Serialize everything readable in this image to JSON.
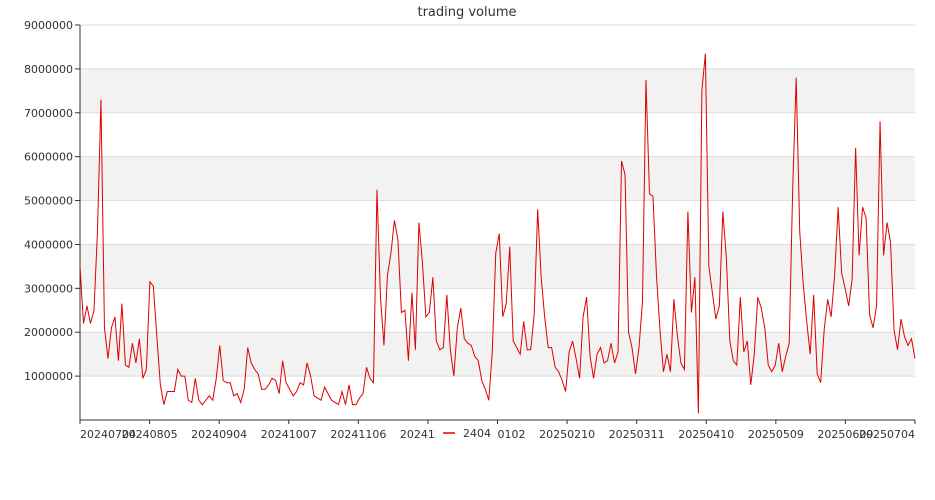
{
  "chart_data": {
    "type": "line",
    "title": "trading volume",
    "xlabel": "",
    "ylabel": "",
    "ylim": [
      0,
      9000000
    ],
    "yticks": [
      1000000,
      2000000,
      3000000,
      4000000,
      5000000,
      6000000,
      7000000,
      8000000,
      9000000
    ],
    "xtick_labels": [
      "20240704",
      "20240805",
      "20240904",
      "20241007",
      "20241106",
      "20241206",
      "20250102",
      "20250210",
      "20250311",
      "20250410",
      "20250509",
      "20250609",
      "20250704"
    ],
    "grid": true,
    "legend_position": "bottom-center",
    "colors": {
      "line": "#e00000",
      "band": "#f2f2f2",
      "grid": "#dddddd",
      "axis": "#333333"
    },
    "series": [
      {
        "name": "2404",
        "values": [
          3500000,
          2200000,
          2600000,
          2200000,
          2500000,
          4300000,
          7300000,
          2100000,
          1400000,
          2100000,
          2350000,
          1350000,
          2650000,
          1250000,
          1200000,
          1750000,
          1300000,
          1850000,
          950000,
          1150000,
          3150000,
          3050000,
          1900000,
          800000,
          350000,
          650000,
          650000,
          650000,
          1150000,
          1000000,
          1000000,
          450000,
          400000,
          950000,
          450000,
          350000,
          450000,
          550000,
          450000,
          950000,
          1700000,
          900000,
          850000,
          850000,
          550000,
          600000,
          400000,
          700000,
          1650000,
          1300000,
          1150000,
          1050000,
          700000,
          700000,
          800000,
          950000,
          900000,
          600000,
          1350000,
          850000,
          700000,
          550000,
          650000,
          850000,
          800000,
          1300000,
          1000000,
          550000,
          500000,
          450000,
          750000,
          600000,
          450000,
          400000,
          350000,
          650000,
          350000,
          800000,
          350000,
          350000,
          500000,
          600000,
          1200000,
          950000,
          850000,
          5250000,
          2800000,
          1700000,
          3300000,
          3800000,
          4550000,
          4100000,
          2450000,
          2500000,
          1350000,
          2900000,
          1600000,
          4500000,
          3600000,
          2350000,
          2450000,
          3250000,
          1800000,
          1600000,
          1650000,
          2850000,
          1600000,
          1000000,
          2100000,
          2550000,
          1850000,
          1750000,
          1700000,
          1450000,
          1350000,
          900000,
          700000,
          450000,
          1550000,
          3800000,
          4250000,
          2350000,
          2650000,
          3950000,
          1800000,
          1650000,
          1500000,
          2250000,
          1600000,
          1600000,
          2400000,
          4800000,
          3250000,
          2350000,
          1650000,
          1650000,
          1200000,
          1100000,
          900000,
          650000,
          1550000,
          1800000,
          1400000,
          950000,
          2350000,
          2800000,
          1450000,
          950000,
          1500000,
          1650000,
          1300000,
          1350000,
          1750000,
          1300000,
          1550000,
          5900000,
          5600000,
          2000000,
          1650000,
          1050000,
          1650000,
          2700000,
          7750000,
          5150000,
          5100000,
          3300000,
          2050000,
          1100000,
          1500000,
          1100000,
          2750000,
          1900000,
          1300000,
          1150000,
          4750000,
          2450000,
          3250000,
          150000,
          7500000,
          8350000,
          3500000,
          2900000,
          2300000,
          2600000,
          4750000,
          3700000,
          1800000,
          1350000,
          1250000,
          2800000,
          1550000,
          1800000,
          800000,
          1500000,
          2800000,
          2550000,
          2100000,
          1250000,
          1100000,
          1250000,
          1750000,
          1100000,
          1450000,
          1750000,
          5300000,
          7800000,
          4300000,
          3100000,
          2250000,
          1500000,
          2850000,
          1050000,
          850000,
          2050000,
          2750000,
          2350000,
          3300000,
          4850000,
          3350000,
          3000000,
          2600000,
          3200000,
          6200000,
          3750000,
          4850000,
          4600000,
          2400000,
          2100000,
          2600000,
          6800000,
          3750000,
          4500000,
          4050000,
          2050000,
          1600000,
          2300000,
          1900000,
          1700000,
          1850000,
          1400000
        ]
      }
    ]
  }
}
